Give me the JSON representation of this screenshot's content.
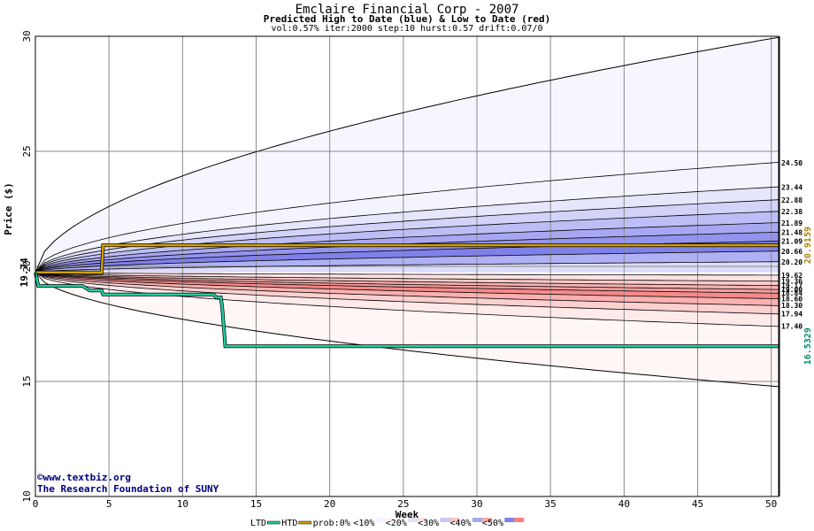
{
  "chart_data": {
    "type": "area",
    "title": "Emclaire Financial Corp - 2007",
    "subtitle": "Predicted High to Date (blue) &  Low to Date (red)",
    "params": "vol:0.57% iter:2000 step:10 hurst:0.57 drift:0.07/0",
    "xlabel": "Week",
    "ylabel": "Price ($)",
    "xlim": [
      0,
      50.5
    ],
    "ylim": [
      10,
      30
    ],
    "xticks": [
      0,
      5,
      10,
      15,
      20,
      25,
      30,
      35,
      40,
      45,
      50
    ],
    "yticks": [
      10,
      15,
      20,
      25,
      30
    ],
    "grid": true,
    "start_price": 19.74,
    "start_label": "19.74",
    "high_levels": [
      {
        "label": "24.50",
        "value": 24.5,
        "color": "#f4f4ff"
      },
      {
        "label": "23.44",
        "value": 23.44,
        "color": "#e6e6fc"
      },
      {
        "label": "22.88",
        "value": 22.88,
        "color": "#d3d3fa"
      },
      {
        "label": "22.38",
        "value": 22.38,
        "color": "#bebef6"
      },
      {
        "label": "21.89",
        "value": 21.89,
        "color": "#a8a8f2"
      },
      {
        "label": "21.48",
        "value": 21.48,
        "color": "#9494ee"
      },
      {
        "label": "21.09",
        "value": 21.09,
        "color": "#8080ea"
      },
      {
        "label": "20.66",
        "value": 20.66,
        "color": "#b0b0f4"
      },
      {
        "label": "20.20",
        "value": 20.2,
        "color": "#dcdcfb"
      }
    ],
    "low_levels": [
      {
        "label": "19.62",
        "value": 19.62,
        "color": "#ffffff"
      },
      {
        "label": "19.36",
        "value": 19.36,
        "color": "#ffe2e2"
      },
      {
        "label": "19.17",
        "value": 19.17,
        "color": "#fdcaca"
      },
      {
        "label": "19.00",
        "value": 19.0,
        "color": "#fbb4b4"
      },
      {
        "label": "18.84",
        "value": 18.84,
        "color": "#f99e9e"
      },
      {
        "label": "18.60",
        "value": 18.6,
        "color": "#f78a8a"
      },
      {
        "label": "18.30",
        "value": 18.3,
        "color": "#fbb0b0"
      },
      {
        "label": "17.94",
        "value": 17.94,
        "color": "#fdd0d0"
      },
      {
        "label": "17.40",
        "value": 17.4,
        "color": "#ffeaea"
      }
    ],
    "outer_high": {
      "value_at_50": 29.9
    },
    "outer_low": {
      "value_at_50": 14.8
    },
    "htd_series": {
      "name": "HTD",
      "color": "#d4a000",
      "points": [
        [
          0,
          19.74
        ],
        [
          4.5,
          19.74
        ],
        [
          4.6,
          20.92
        ],
        [
          50.5,
          20.92
        ]
      ],
      "end_label": "20.9159"
    },
    "ltd_series": {
      "name": "LTD",
      "color": "#20d0a0",
      "points": [
        [
          0,
          19.74
        ],
        [
          0.2,
          19.15
        ],
        [
          3.2,
          19.15
        ],
        [
          3.7,
          18.95
        ],
        [
          4.5,
          18.95
        ],
        [
          4.6,
          18.78
        ],
        [
          12.1,
          18.78
        ],
        [
          12.3,
          18.65
        ],
        [
          12.6,
          18.65
        ],
        [
          12.7,
          18.2
        ],
        [
          12.9,
          16.53
        ],
        [
          50.5,
          16.53
        ]
      ],
      "end_label": "16.5329"
    },
    "legend": {
      "items": [
        "LTD",
        "HTD",
        "prob:0%",
        "<10%",
        "<20%",
        "<30%",
        "<40%",
        "<50%"
      ],
      "placement": "bottom"
    }
  },
  "watermark": {
    "line1": "©www.textbiz.org",
    "line2": "The Research Foundation of SUNY"
  }
}
